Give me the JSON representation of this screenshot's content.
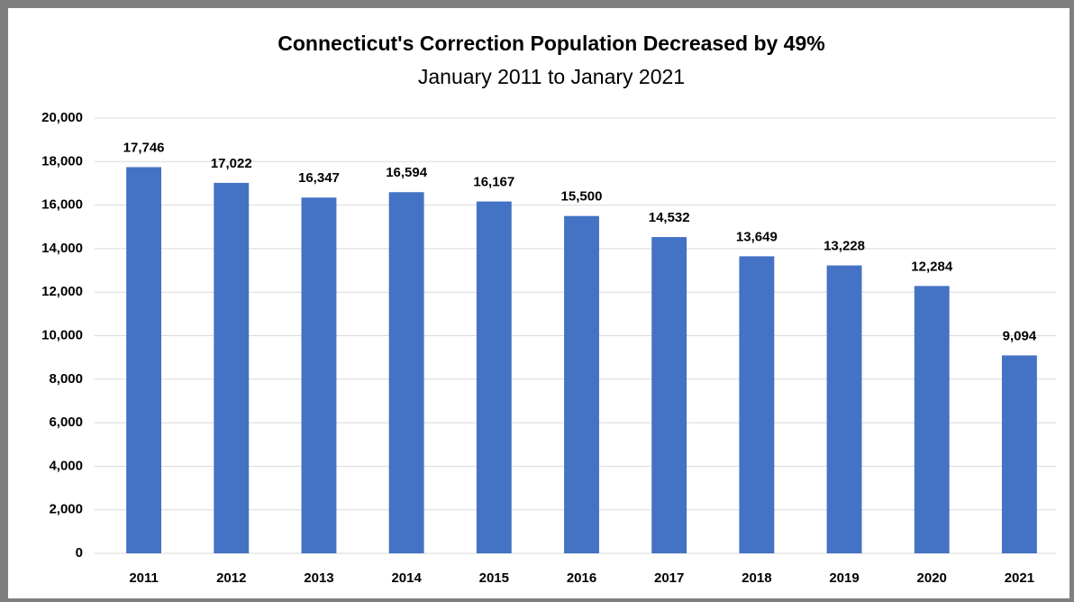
{
  "chart_data": {
    "type": "bar",
    "title": "Connecticut's Correction Population Decreased by 49%",
    "subtitle": "January 2011 to Janary 2021",
    "categories": [
      "2011",
      "2012",
      "2013",
      "2014",
      "2015",
      "2016",
      "2017",
      "2018",
      "2019",
      "2020",
      "2021"
    ],
    "values": [
      17746,
      17022,
      16347,
      16594,
      16167,
      15500,
      14532,
      13649,
      13228,
      12284,
      9094
    ],
    "value_labels": [
      "17,746",
      "17,022",
      "16,347",
      "16,594",
      "16,167",
      "15,500",
      "14,532",
      "13,649",
      "13,228",
      "12,284",
      "9,094"
    ],
    "color": "#4472c4",
    "ylim": [
      0,
      20000
    ],
    "yticks": [
      0,
      {
        "value": 2000,
        "label": "2,000"
      },
      {
        "value": 4000,
        "label": "4,000"
      },
      {
        "value": 6000,
        "label": "6,000"
      },
      {
        "value": 8000,
        "label": "8,000"
      },
      {
        "value": 10000,
        "label": "10,000"
      },
      {
        "value": 12000,
        "label": "12,000"
      },
      {
        "value": 14000,
        "label": "14,000"
      },
      {
        "value": 16000,
        "label": "16,000"
      },
      {
        "value": 18000,
        "label": "18,000"
      },
      {
        "value": 20000,
        "label": "20,000"
      }
    ],
    "grid": true
  }
}
